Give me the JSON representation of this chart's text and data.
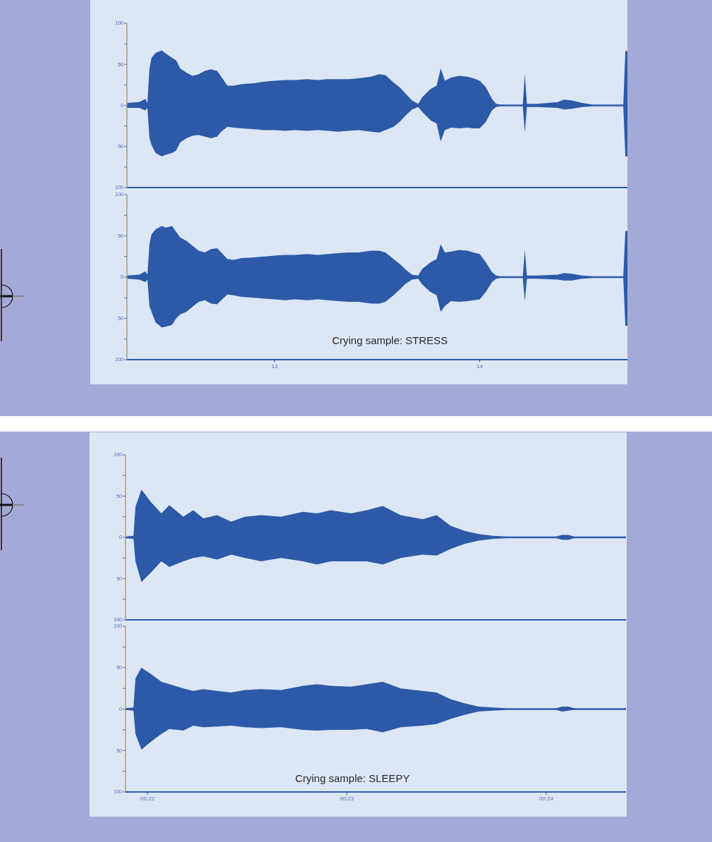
{
  "chart_data": [
    {
      "type": "area",
      "x": [
        12.28,
        12.34,
        12.37,
        12.38,
        12.39,
        12.4,
        12.42,
        12.45,
        12.47,
        12.5,
        12.52,
        12.54,
        12.57,
        12.6,
        12.63,
        12.66,
        12.69,
        12.72,
        12.74,
        12.77,
        12.8,
        12.84,
        12.9,
        12.95,
        13.0,
        13.05,
        13.1,
        13.16,
        13.21,
        13.26,
        13.31,
        13.36,
        13.41,
        13.47,
        13.51,
        13.54,
        13.58,
        13.61,
        13.64,
        13.67,
        13.7,
        13.72,
        13.76,
        13.79,
        13.81,
        13.83,
        13.86,
        13.9,
        13.94,
        13.97,
        14.0,
        14.03,
        14.06,
        14.08,
        14.1,
        14.21,
        14.22,
        14.23,
        14.28,
        14.38,
        14.41,
        14.45,
        14.5,
        14.55,
        14.7,
        14.71,
        14.72
      ],
      "series": [
        {
          "color": "#2c5aa8",
          "values": [
            null,
            null,
            null,
            null,
            null,
            null,
            null,
            null,
            null,
            null,
            null,
            null,
            null,
            null,
            null,
            null,
            null,
            null,
            null,
            null,
            null,
            null,
            null,
            null,
            null,
            null,
            null,
            null,
            null,
            null,
            null,
            null,
            null,
            null,
            null,
            null,
            null,
            null,
            null,
            null,
            null,
            null,
            null,
            null,
            null,
            null,
            null,
            null,
            null,
            null,
            null,
            null,
            null,
            null,
            null,
            null,
            null,
            null,
            null,
            null,
            null,
            null,
            null,
            null,
            null,
            null,
            null
          ],
          "upper": [
            3,
            4,
            8,
            3,
            45,
            58,
            64,
            67,
            63,
            58,
            55,
            45,
            40,
            36,
            38,
            42,
            44,
            42,
            35,
            24,
            24,
            26,
            27,
            29,
            30,
            31,
            31,
            32,
            31,
            32,
            32,
            32,
            33,
            35,
            38,
            37,
            28,
            22,
            14,
            6,
            2,
            10,
            20,
            24,
            45,
            30,
            34,
            36,
            35,
            33,
            30,
            22,
            8,
            2,
            1,
            1,
            38,
            2,
            2,
            4,
            7,
            6,
            3,
            1,
            1,
            66,
            66
          ],
          "lower": [
            -3,
            -3,
            -6,
            -3,
            -40,
            -48,
            -58,
            -62,
            -60,
            -58,
            -55,
            -45,
            -40,
            -37,
            -36,
            -38,
            -40,
            -38,
            -32,
            -26,
            -27,
            -28,
            -29,
            -30,
            -30,
            -31,
            -30,
            -31,
            -30,
            -31,
            -32,
            -31,
            -30,
            -32,
            -33,
            -30,
            -26,
            -20,
            -12,
            -5,
            -2,
            -8,
            -18,
            -22,
            -44,
            -30,
            -27,
            -28,
            -27,
            -28,
            -28,
            -20,
            -6,
            -2,
            -1,
            -1,
            -33,
            -2,
            -2,
            -3,
            -5,
            -4,
            -2,
            -1,
            -1,
            -62,
            -62
          ]
        }
      ],
      "xlim": [
        12.28,
        14.72
      ],
      "ylim": [
        -100,
        100
      ],
      "yticks": [
        100,
        {
          "value": 75,
          "label": null
        },
        50,
        {
          "value": 25,
          "label": null
        },
        0,
        {
          "value": -25,
          "label": null
        },
        {
          "value": -50,
          "label": "50"
        },
        {
          "value": -75,
          "label": null
        },
        {
          "value": -100,
          "label": "100"
        }
      ],
      "tick_labels": "y"
    },
    {
      "type": "area",
      "x": [
        12.28,
        12.34,
        12.37,
        12.38,
        12.39,
        12.4,
        12.42,
        12.45,
        12.47,
        12.5,
        12.52,
        12.54,
        12.57,
        12.6,
        12.63,
        12.66,
        12.69,
        12.72,
        12.74,
        12.77,
        12.8,
        12.84,
        12.9,
        12.95,
        13.0,
        13.05,
        13.1,
        13.16,
        13.21,
        13.26,
        13.31,
        13.36,
        13.41,
        13.47,
        13.51,
        13.54,
        13.58,
        13.61,
        13.64,
        13.67,
        13.7,
        13.72,
        13.76,
        13.79,
        13.81,
        13.83,
        13.86,
        13.9,
        13.94,
        13.97,
        14.0,
        14.03,
        14.06,
        14.08,
        14.1,
        14.21,
        14.22,
        14.23,
        14.28,
        14.38,
        14.41,
        14.45,
        14.5,
        14.55,
        14.7,
        14.71,
        14.72
      ],
      "series": [
        {
          "color": "#2c5aa8",
          "values": [
            null,
            null,
            null,
            null,
            null,
            null,
            null,
            null,
            null,
            null,
            null,
            null,
            null,
            null,
            null,
            null,
            null,
            null,
            null,
            null,
            null,
            null,
            null,
            null,
            null,
            null,
            null,
            null,
            null,
            null,
            null,
            null,
            null,
            null,
            null,
            null,
            null,
            null,
            null,
            null,
            null,
            null,
            null,
            null,
            null,
            null,
            null,
            null,
            null,
            null,
            null,
            null,
            null,
            null,
            null,
            null,
            null,
            null,
            null,
            null,
            null,
            null,
            null,
            null,
            null,
            null,
            null
          ],
          "upper": [
            2,
            3,
            7,
            3,
            40,
            52,
            58,
            62,
            60,
            62,
            55,
            48,
            44,
            38,
            32,
            30,
            34,
            35,
            30,
            22,
            21,
            23,
            24,
            25,
            26,
            27,
            27,
            28,
            27,
            28,
            29,
            30,
            30,
            32,
            32,
            30,
            22,
            16,
            9,
            3,
            2,
            10,
            18,
            22,
            40,
            30,
            31,
            33,
            32,
            30,
            28,
            18,
            6,
            2,
            1,
            1,
            33,
            2,
            2,
            3,
            5,
            4,
            2,
            1,
            1,
            56,
            56
          ],
          "lower": [
            -2,
            -3,
            -6,
            -3,
            -35,
            -42,
            -55,
            -61,
            -60,
            -58,
            -50,
            -45,
            -42,
            -36,
            -30,
            -28,
            -32,
            -33,
            -28,
            -21,
            -22,
            -24,
            -25,
            -26,
            -27,
            -28,
            -27,
            -28,
            -27,
            -28,
            -29,
            -30,
            -30,
            -32,
            -32,
            -30,
            -22,
            -15,
            -8,
            -3,
            -2,
            -9,
            -18,
            -22,
            -42,
            -35,
            -29,
            -30,
            -29,
            -28,
            -27,
            -18,
            -6,
            -2,
            -1,
            -1,
            -29,
            -2,
            -2,
            -3,
            -4,
            -4,
            -2,
            -1,
            -1,
            -59,
            -59
          ]
        }
      ],
      "xlim": [
        12.28,
        14.72
      ],
      "xticks": [
        13,
        14
      ],
      "ylim": [
        -100,
        100
      ],
      "yticks": [
        100,
        {
          "value": 75,
          "label": null
        },
        50,
        {
          "value": 25,
          "label": null
        },
        0,
        {
          "value": -25,
          "label": null
        },
        {
          "value": -50,
          "label": "50"
        },
        {
          "value": -75,
          "label": null
        },
        {
          "value": -100,
          "label": "100"
        }
      ],
      "annotations": [
        "Crying sample: STRESS"
      ]
    },
    {
      "type": "area",
      "x": [
        21.89,
        21.93,
        21.94,
        21.97,
        22.02,
        22.07,
        22.11,
        22.18,
        22.23,
        22.28,
        22.35,
        22.42,
        22.49,
        22.57,
        22.67,
        22.78,
        22.85,
        22.92,
        23.02,
        23.1,
        23.18,
        23.27,
        23.38,
        23.45,
        23.52,
        23.59,
        23.66,
        23.73,
        23.8,
        24.05,
        24.08,
        24.11,
        24.14,
        24.19,
        24.4
      ],
      "series": [
        {
          "color": "#2c5aa8",
          "values": [
            null,
            null,
            null,
            null,
            null,
            null,
            null,
            null,
            null,
            null,
            null,
            null,
            null,
            null,
            null,
            null,
            null,
            null,
            null,
            null,
            null,
            null,
            null,
            null,
            null,
            null,
            null,
            null,
            null,
            null,
            null,
            null,
            null,
            null,
            null
          ],
          "upper": [
            1,
            2,
            37,
            58,
            42,
            29,
            39,
            25,
            33,
            23,
            27,
            19,
            25,
            27,
            25,
            31,
            29,
            33,
            29,
            33,
            38,
            27,
            22,
            27,
            14,
            8,
            4,
            2,
            1,
            1,
            3,
            3,
            1,
            1,
            1
          ],
          "lower": [
            -1,
            -2,
            -29,
            -54,
            -42,
            -29,
            -36,
            -29,
            -25,
            -23,
            -27,
            -21,
            -25,
            -29,
            -25,
            -29,
            -33,
            -29,
            -29,
            -29,
            -33,
            -25,
            -21,
            -22,
            -14,
            -8,
            -4,
            -2,
            -1,
            -1,
            -3,
            -3,
            -1,
            -1,
            -1
          ]
        }
      ],
      "xlim": [
        21.89,
        24.4
      ],
      "ylim": [
        -100,
        100
      ],
      "yticks": [
        100,
        {
          "value": 75,
          "label": null
        },
        50,
        {
          "value": 25,
          "label": null
        },
        0,
        {
          "value": -25,
          "label": null
        },
        {
          "value": -50,
          "label": "50"
        },
        {
          "value": -75,
          "label": null
        },
        {
          "value": -100,
          "label": "100"
        }
      ],
      "tick_labels": "y"
    },
    {
      "type": "area",
      "x": [
        21.89,
        21.93,
        21.94,
        21.97,
        22.02,
        22.07,
        22.11,
        22.18,
        22.23,
        22.28,
        22.35,
        22.42,
        22.49,
        22.57,
        22.67,
        22.78,
        22.85,
        22.92,
        23.02,
        23.1,
        23.18,
        23.27,
        23.38,
        23.45,
        23.52,
        23.59,
        23.66,
        23.73,
        23.8,
        24.05,
        24.08,
        24.11,
        24.14,
        24.19,
        24.4
      ],
      "series": [
        {
          "color": "#2c5aa8",
          "values": [
            null,
            null,
            null,
            null,
            null,
            null,
            null,
            null,
            null,
            null,
            null,
            null,
            null,
            null,
            null,
            null,
            null,
            null,
            null,
            null,
            null,
            null,
            null,
            null,
            null,
            null,
            null,
            null,
            null,
            null,
            null,
            null,
            null,
            null,
            null
          ],
          "upper": [
            1,
            2,
            37,
            50,
            42,
            33,
            30,
            25,
            22,
            24,
            22,
            20,
            23,
            24,
            23,
            28,
            30,
            28,
            27,
            30,
            33,
            25,
            22,
            20,
            12,
            7,
            3,
            2,
            1,
            1,
            3,
            3,
            1,
            1,
            1
          ],
          "lower": [
            -1,
            -2,
            -30,
            -49,
            -39,
            -30,
            -24,
            -26,
            -20,
            -22,
            -21,
            -20,
            -22,
            -23,
            -22,
            -25,
            -26,
            -25,
            -25,
            -24,
            -28,
            -22,
            -20,
            -18,
            -12,
            -7,
            -3,
            -2,
            -1,
            -1,
            -3,
            -2,
            -1,
            -1,
            -1
          ]
        }
      ],
      "xlim": [
        21.89,
        24.4
      ],
      "xticks": [
        {
          "value": 22,
          "label": "00:22"
        },
        {
          "value": 23,
          "label": "00:23"
        },
        {
          "value": 24,
          "label": "00:24"
        }
      ],
      "ylim": [
        -100,
        100
      ],
      "yticks": [
        100,
        {
          "value": 75,
          "label": null
        },
        50,
        {
          "value": 25,
          "label": null
        },
        0,
        {
          "value": -25,
          "label": null
        },
        {
          "value": -50,
          "label": "50"
        },
        {
          "value": -75,
          "label": null
        },
        {
          "value": -100,
          "label": "100"
        }
      ],
      "annotations": [
        "Crying sample: SLEEPY"
      ]
    }
  ]
}
